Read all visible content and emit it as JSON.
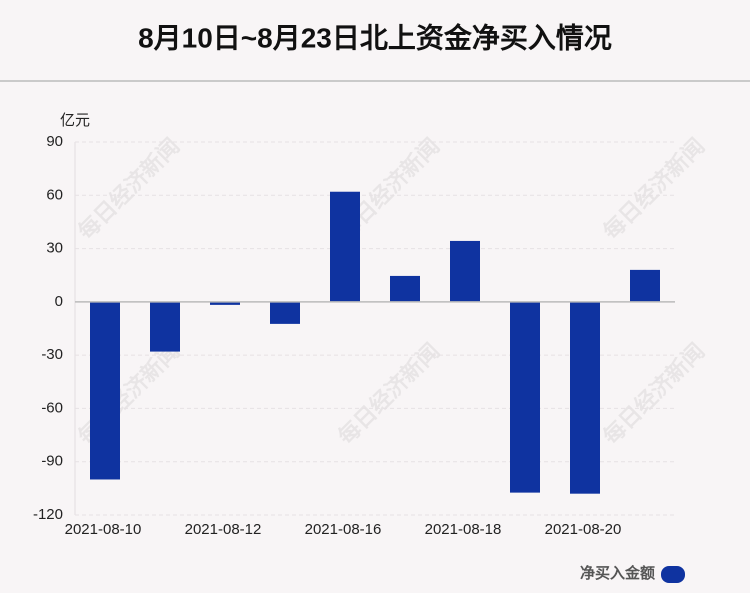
{
  "chart_data": {
    "type": "bar",
    "title": "8月10日~8月23日北上资金净买入情况",
    "y_unit": "亿元",
    "categories": [
      "2021-08-10",
      null,
      "2021-08-12",
      null,
      "2021-08-16",
      null,
      "2021-08-18",
      null,
      "2021-08-20",
      null
    ],
    "series": [
      {
        "name": "净买入金额",
        "color": "#0f33a0",
        "values": [
          -100,
          -28,
          -1.7,
          -12.4,
          62,
          14.6,
          34.3,
          -107.4,
          -108,
          18
        ]
      }
    ],
    "ylim": [
      -120,
      90
    ],
    "yticks": [
      -120,
      -90,
      -60,
      -30,
      0,
      30,
      60,
      90
    ],
    "grid": true,
    "watermark": "每日经济新闻"
  }
}
